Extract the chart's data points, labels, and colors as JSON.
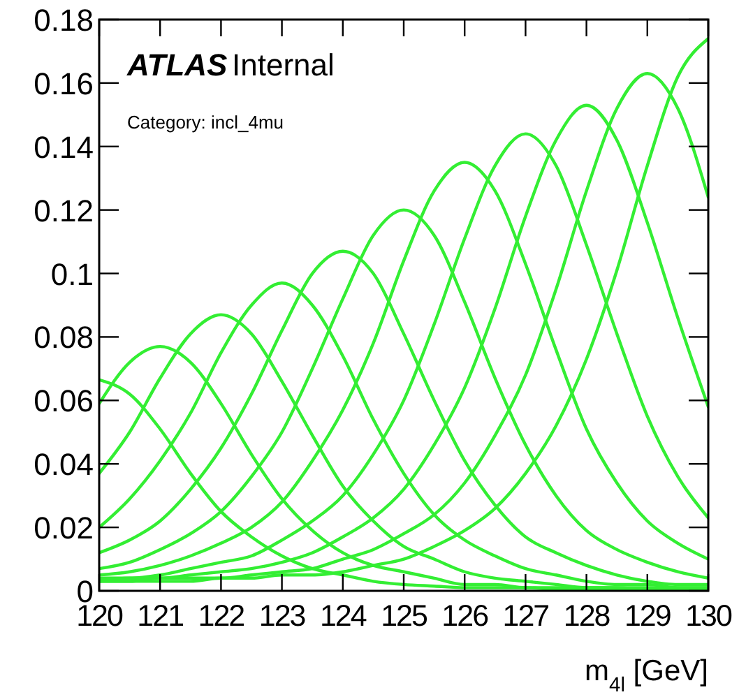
{
  "chart_data": {
    "type": "line",
    "annotations": [
      "ATLAS",
      "Internal",
      "Category: incl_4mu"
    ],
    "xlabel": "m$_{4l}$ [GeV]",
    "x": [
      120,
      120.5,
      121,
      121.5,
      122,
      122.5,
      123,
      123.5,
      124,
      124.5,
      125,
      125.5,
      126,
      126.5,
      127,
      127.5,
      128,
      128.5,
      129,
      129.5,
      130
    ],
    "series": [
      {
        "color": "#33ee33",
        "values": [
          0.0665,
          0.062,
          0.051,
          0.037,
          0.025,
          0.017,
          0.011,
          0.007,
          0.005,
          0.003,
          0.002,
          0.0015,
          0.001,
          0.001,
          0.001,
          0.0005,
          0.0005,
          0.0005,
          0.0003,
          0.0003,
          0.0003
        ]
      },
      {
        "color": "#33ee33",
        "values": [
          0.059,
          0.072,
          0.077,
          0.072,
          0.059,
          0.043,
          0.029,
          0.019,
          0.012,
          0.008,
          0.006,
          0.004,
          0.002,
          0.002,
          0.001,
          0.001,
          0.001,
          0.001,
          0.0005,
          0.0005,
          0.0005
        ]
      },
      {
        "color": "#33ee33",
        "values": [
          0.037,
          0.05,
          0.067,
          0.081,
          0.087,
          0.081,
          0.066,
          0.049,
          0.033,
          0.022,
          0.014,
          0.01,
          0.006,
          0.004,
          0.003,
          0.002,
          0.001,
          0.001,
          0.001,
          0.001,
          0.001
        ]
      },
      {
        "color": "#33ee33",
        "values": [
          0.02,
          0.029,
          0.041,
          0.056,
          0.075,
          0.09,
          0.097,
          0.09,
          0.074,
          0.054,
          0.037,
          0.024,
          0.016,
          0.011,
          0.007,
          0.005,
          0.003,
          0.002,
          0.002,
          0.001,
          0.001
        ]
      },
      {
        "color": "#33ee33",
        "values": [
          0.012,
          0.016,
          0.022,
          0.032,
          0.045,
          0.062,
          0.082,
          0.1,
          0.107,
          0.1,
          0.081,
          0.06,
          0.041,
          0.027,
          0.017,
          0.012,
          0.008,
          0.005,
          0.003,
          0.002,
          0.002
        ]
      },
      {
        "color": "#33ee33",
        "values": [
          0.007,
          0.009,
          0.013,
          0.018,
          0.025,
          0.036,
          0.05,
          0.07,
          0.092,
          0.112,
          0.12,
          0.112,
          0.091,
          0.067,
          0.046,
          0.03,
          0.019,
          0.013,
          0.009,
          0.006,
          0.004
        ]
      },
      {
        "color": "#33ee33",
        "values": [
          0.005,
          0.006,
          0.008,
          0.011,
          0.015,
          0.02,
          0.028,
          0.041,
          0.057,
          0.078,
          0.104,
          0.126,
          0.135,
          0.126,
          0.103,
          0.076,
          0.051,
          0.034,
          0.022,
          0.015,
          0.01
        ]
      },
      {
        "color": "#33ee33",
        "values": [
          0.004,
          0.004,
          0.005,
          0.007,
          0.009,
          0.011,
          0.016,
          0.022,
          0.03,
          0.043,
          0.06,
          0.084,
          0.111,
          0.134,
          0.144,
          0.134,
          0.109,
          0.081,
          0.055,
          0.036,
          0.023
        ]
      },
      {
        "color": "#33ee33",
        "values": [
          0.003,
          0.004,
          0.004,
          0.005,
          0.006,
          0.007,
          0.009,
          0.012,
          0.017,
          0.023,
          0.032,
          0.046,
          0.064,
          0.089,
          0.118,
          0.142,
          0.153,
          0.142,
          0.116,
          0.086,
          0.058
        ]
      },
      {
        "color": "#33ee33",
        "values": [
          0.003,
          0.003,
          0.004,
          0.004,
          0.004,
          0.005,
          0.006,
          0.007,
          0.01,
          0.013,
          0.018,
          0.024,
          0.034,
          0.049,
          0.068,
          0.095,
          0.126,
          0.152,
          0.163,
          0.152,
          0.124
        ]
      },
      {
        "color": "#33ee33",
        "values": [
          0.003,
          0.003,
          0.003,
          0.003,
          0.004,
          0.004,
          0.005,
          0.005,
          0.006,
          0.008,
          0.01,
          0.014,
          0.019,
          0.026,
          0.037,
          0.052,
          0.073,
          0.101,
          0.134,
          0.162,
          0.174
        ]
      }
    ],
    "xlim": [
      120,
      130
    ],
    "xticks": [
      120,
      121,
      122,
      123,
      124,
      125,
      126,
      127,
      128,
      129,
      130
    ],
    "ylim": [
      0,
      0.18
    ],
    "yticks": [
      0,
      0.02,
      0.04,
      0.06,
      0.08,
      0.1,
      0.12,
      0.14,
      0.16,
      0.18
    ],
    "grid": false,
    "marker": "none",
    "line_style": "solid"
  }
}
